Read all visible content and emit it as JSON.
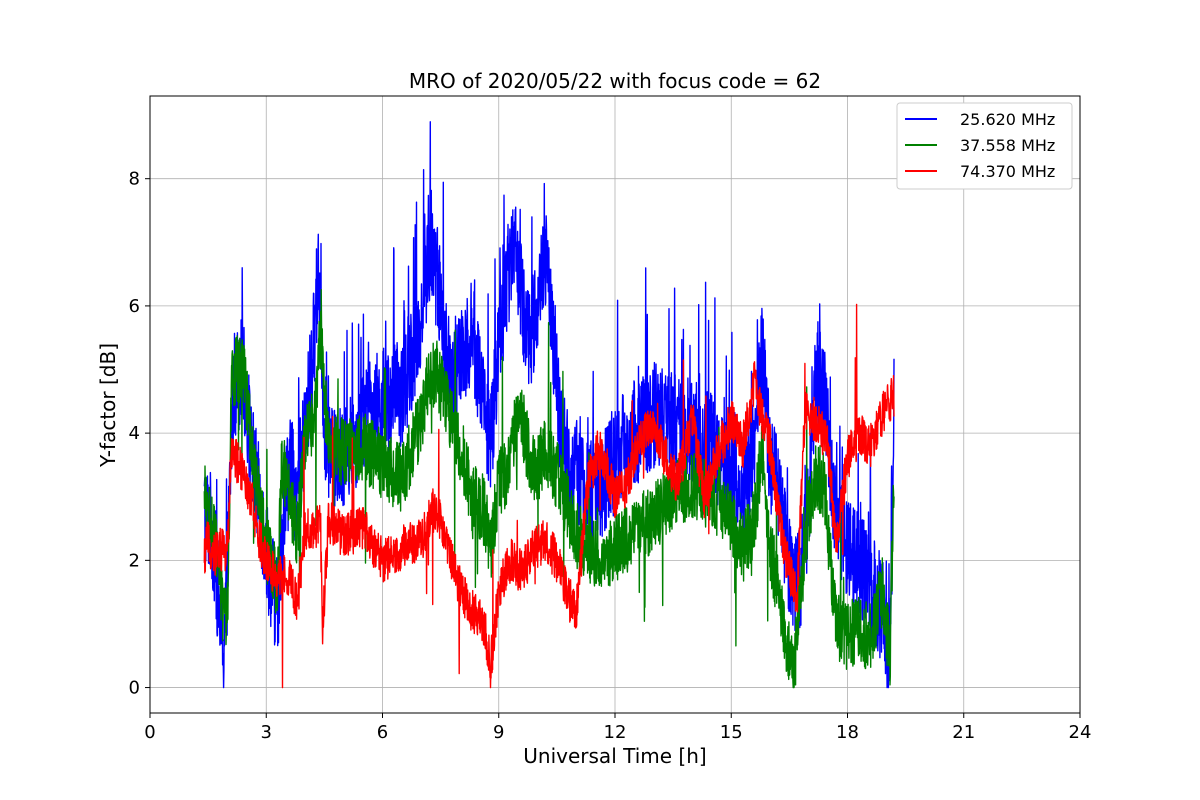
{
  "chart_data": {
    "type": "line",
    "title": "MRO of 2020/05/22 with focus code = 62",
    "xlabel": "Universal Time [h]",
    "ylabel": "Y-factor [dB]",
    "xlim": [
      0,
      24
    ],
    "ylim": [
      -0.4,
      9.3
    ],
    "xticks": [
      0,
      3,
      6,
      9,
      12,
      15,
      18,
      21,
      24
    ],
    "yticks": [
      0,
      2,
      4,
      6,
      8
    ],
    "grid": true,
    "legend_position": "top-right",
    "series": [
      {
        "name": "25.620 MHz",
        "color": "#0000ff",
        "x": [
          1.4,
          1.6,
          1.8,
          1.9,
          2.0,
          2.1,
          2.2,
          2.4,
          2.6,
          2.8,
          3.0,
          3.2,
          3.3,
          3.4,
          3.6,
          3.8,
          4.0,
          4.2,
          4.35,
          4.5,
          4.7,
          5.0,
          5.5,
          6.0,
          6.5,
          7.0,
          7.2,
          7.4,
          7.6,
          7.8,
          8.0,
          8.3,
          8.6,
          8.8,
          9.0,
          9.2,
          9.4,
          9.6,
          9.8,
          10.0,
          10.2,
          10.4,
          10.6,
          10.8,
          11.0,
          11.3,
          11.6,
          12.0,
          12.5,
          13.0,
          13.5,
          14.0,
          14.5,
          15.0,
          15.3,
          15.6,
          15.8,
          16.0,
          16.3,
          16.6,
          16.8,
          17.0,
          17.2,
          17.4,
          17.6,
          17.8,
          18.0,
          18.3,
          18.6,
          18.9,
          19.1,
          19.2
        ],
        "y": [
          2.8,
          2.5,
          1.2,
          0.6,
          1.8,
          4.0,
          4.8,
          5.0,
          3.8,
          3.0,
          2.2,
          1.5,
          1.1,
          2.5,
          3.5,
          3.0,
          4.0,
          5.2,
          6.6,
          4.2,
          3.5,
          3.6,
          4.2,
          4.5,
          4.6,
          5.8,
          6.8,
          6.5,
          5.5,
          4.6,
          5.2,
          5.6,
          4.6,
          3.8,
          5.5,
          6.3,
          7.2,
          6.0,
          5.5,
          6.0,
          6.8,
          5.4,
          4.0,
          3.5,
          3.4,
          3.0,
          3.1,
          3.6,
          4.0,
          4.3,
          4.1,
          4.0,
          3.8,
          3.3,
          3.0,
          3.8,
          5.2,
          3.6,
          2.8,
          1.5,
          1.8,
          2.8,
          5.0,
          4.6,
          3.2,
          2.5,
          2.2,
          2.0,
          1.6,
          1.2,
          0.3,
          4.5
        ]
      },
      {
        "name": "37.558 MHz",
        "color": "#008000",
        "x": [
          1.4,
          1.6,
          1.8,
          1.9,
          2.0,
          2.1,
          2.2,
          2.4,
          2.6,
          2.8,
          3.0,
          3.2,
          3.3,
          3.4,
          3.6,
          3.8,
          4.0,
          4.2,
          4.4,
          4.6,
          5.0,
          5.5,
          6.0,
          6.5,
          7.0,
          7.2,
          7.4,
          7.6,
          7.8,
          8.0,
          8.3,
          8.6,
          8.8,
          9.0,
          9.2,
          9.4,
          9.6,
          9.8,
          10.0,
          10.2,
          10.4,
          10.6,
          10.8,
          11.0,
          11.3,
          11.6,
          12.0,
          12.5,
          13.0,
          13.5,
          14.0,
          14.5,
          15.0,
          15.3,
          15.6,
          15.8,
          16.0,
          16.3,
          16.6,
          16.8,
          17.0,
          17.2,
          17.4,
          17.6,
          17.8,
          18.0,
          18.3,
          18.6,
          18.9,
          19.1,
          19.2
        ],
        "y": [
          3.0,
          2.6,
          1.8,
          1.0,
          1.2,
          4.8,
          5.0,
          5.0,
          4.0,
          3.0,
          2.2,
          1.8,
          1.6,
          3.5,
          3.0,
          2.4,
          3.8,
          4.2,
          5.5,
          3.8,
          3.7,
          3.8,
          3.5,
          3.3,
          4.2,
          4.9,
          5.0,
          4.5,
          4.2,
          3.8,
          3.0,
          2.8,
          2.2,
          3.2,
          3.4,
          4.0,
          4.2,
          3.6,
          3.4,
          3.8,
          3.5,
          3.2,
          2.8,
          2.4,
          2.2,
          2.0,
          2.2,
          2.4,
          2.7,
          3.0,
          3.2,
          3.0,
          2.6,
          2.2,
          2.6,
          3.8,
          2.2,
          1.2,
          0.2,
          1.5,
          2.8,
          3.3,
          3.2,
          1.6,
          0.9,
          0.8,
          0.9,
          0.8,
          1.5,
          0.5,
          3.4
        ]
      },
      {
        "name": "74.370 MHz",
        "color": "#ff0000",
        "x": [
          1.4,
          1.5,
          1.6,
          1.8,
          2.0,
          2.1,
          2.2,
          2.4,
          2.6,
          2.8,
          3.0,
          3.2,
          3.4,
          3.6,
          3.8,
          4.0,
          4.2,
          4.4,
          4.45,
          4.6,
          5.0,
          5.5,
          6.0,
          6.5,
          7.0,
          7.3,
          7.5,
          7.7,
          8.0,
          8.3,
          8.6,
          8.8,
          9.0,
          9.3,
          9.6,
          9.9,
          10.2,
          10.5,
          10.8,
          11.0,
          11.3,
          11.6,
          12.0,
          12.3,
          12.6,
          13.0,
          13.3,
          13.6,
          14.0,
          14.3,
          14.6,
          15.0,
          15.3,
          15.6,
          15.8,
          16.0,
          16.3,
          16.5,
          16.7,
          16.9,
          17.2,
          17.5,
          17.7,
          18.0,
          18.3,
          18.6,
          18.9,
          19.1,
          19.2
        ],
        "y": [
          2.0,
          2.4,
          2.0,
          2.2,
          2.1,
          3.8,
          3.6,
          3.4,
          3.0,
          2.4,
          2.0,
          1.8,
          1.7,
          1.8,
          1.3,
          2.5,
          2.4,
          2.6,
          0.8,
          2.6,
          2.4,
          2.5,
          2.0,
          2.2,
          2.3,
          2.8,
          2.6,
          2.1,
          1.6,
          1.2,
          1.0,
          0.4,
          1.5,
          2.0,
          1.8,
          2.2,
          2.3,
          2.0,
          1.4,
          1.2,
          3.2,
          3.8,
          3.0,
          3.2,
          3.8,
          4.2,
          3.6,
          3.2,
          4.2,
          3.0,
          3.6,
          4.2,
          3.8,
          4.8,
          4.2,
          3.8,
          2.4,
          1.8,
          1.4,
          4.3,
          4.2,
          3.8,
          2.2,
          3.6,
          4.0,
          3.8,
          4.3,
          4.5,
          4.6
        ]
      }
    ]
  }
}
